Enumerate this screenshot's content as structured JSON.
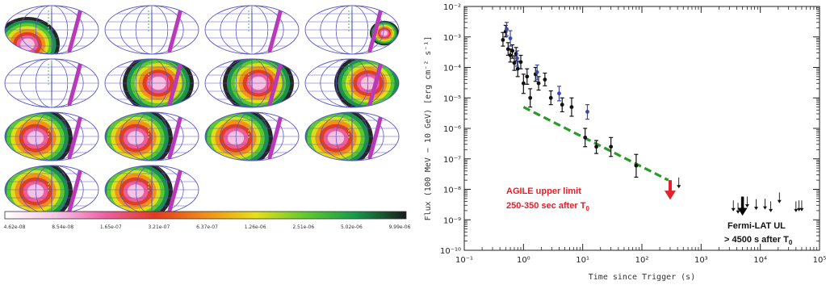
{
  "colorbar": {
    "labels": [
      "4.62e-08",
      "8.54e-08",
      "1.65e-07",
      "3.21e-07",
      "6.37e-07",
      "1.26e-06",
      "2.51e-06",
      "5.02e-06",
      "9.99e-06"
    ],
    "colors": [
      "#ffffff",
      "#f7c6e6",
      "#ef5fa4",
      "#e23a20",
      "#f38d18",
      "#e6e018",
      "#5ecb2e",
      "#169a4a",
      "#1a1a1a"
    ]
  },
  "sky_maps": {
    "count": 14,
    "columns": 4
  },
  "chart_data": {
    "type": "scatter",
    "xlabel": "Time since Trigger (s)",
    "ylabel": "Flux (100 MeV − 10 GeV) [erg cm⁻² s⁻¹]",
    "xscale": "log",
    "yscale": "log",
    "xlim": [
      0.1,
      100000
    ],
    "ylim": [
      1e-10,
      0.01
    ],
    "xticks": [
      "10⁻¹",
      "10⁰",
      "10¹",
      "10²",
      "10³",
      "10⁴",
      "10⁵"
    ],
    "yticks": [
      "10⁻¹⁰",
      "10⁻⁹",
      "10⁻⁸",
      "10⁻⁷",
      "10⁻⁶",
      "10⁻⁵",
      "10⁻⁴",
      "10⁻³",
      "10⁻²"
    ],
    "series": [
      {
        "color": "#111111",
        "points": [
          [
            0.45,
            0.0008,
            0.0005,
            0.0014
          ],
          [
            0.5,
            0.0015,
            0.001,
            0.0024
          ],
          [
            0.55,
            0.0004,
            0.00025,
            0.00065
          ],
          [
            0.6,
            0.00025,
            0.00015,
            0.0004
          ],
          [
            0.65,
            0.00035,
            0.0002,
            0.00055
          ],
          [
            0.7,
            0.00014,
            8e-05,
            0.00024
          ],
          [
            0.75,
            0.00028,
            0.00016,
            0.00045
          ],
          [
            0.8,
            9e-05,
            5e-05,
            0.00016
          ],
          [
            0.9,
            0.00015,
            9e-05,
            0.00025
          ],
          [
            1.0,
            3e-05,
            1.4e-05,
            6e-05
          ],
          [
            1.15,
            5e-05,
            2.8e-05,
            9e-05
          ],
          [
            1.3,
            1e-05,
            5e-06,
            2e-05
          ],
          [
            1.6,
            6e-05,
            3.5e-05,
            0.0001
          ],
          [
            1.8,
            3e-05,
            1.8e-05,
            5e-05
          ],
          [
            2.3,
            4e-05,
            2.5e-05,
            6.5e-05
          ],
          [
            2.9,
            1e-05,
            6e-06,
            1.7e-05
          ],
          [
            4.5,
            6e-06,
            3.5e-06,
            1e-05
          ],
          [
            6.5,
            5e-06,
            2.5e-06,
            1e-05
          ],
          [
            11,
            5e-07,
            2.5e-07,
            1e-06
          ],
          [
            17,
            2.5e-07,
            1.5e-07,
            4e-07
          ],
          [
            30,
            2.5e-07,
            1.2e-07,
            5e-07
          ],
          [
            80,
            6e-08,
            2.5e-08,
            1.4e-07
          ]
        ]
      },
      {
        "color": "#3b48a8",
        "points": [
          [
            0.52,
            0.0018,
            0.0011,
            0.003
          ],
          [
            0.6,
            0.0009,
            0.0005,
            0.0016
          ],
          [
            0.78,
            0.0002,
            0.00011,
            0.00035
          ],
          [
            1.7,
            7e-05,
            4e-05,
            0.00012
          ],
          [
            4,
            1.4e-05,
            8e-06,
            2.4e-05
          ],
          [
            12,
            3.5e-06,
            2e-06,
            6e-06
          ]
        ]
      }
    ],
    "fit_line": {
      "color": "#2a9a2a",
      "from": [
        1.0,
        5e-06
      ],
      "to": [
        280,
        2e-08
      ]
    },
    "agile_ul": {
      "x": 300,
      "y": 2e-08,
      "color": "#e4202a"
    },
    "small_ul": [
      [
        420,
        1.7e-08
      ]
    ],
    "fermi_ul": [
      [
        3500,
        3e-09
      ],
      [
        4200,
        2.5e-09
      ],
      [
        6000,
        4e-09
      ],
      [
        8500,
        3.3e-09
      ],
      [
        12000,
        3.4e-09
      ],
      [
        15000,
        2.8e-09
      ],
      [
        21000,
        5.5e-09
      ],
      [
        40000,
        2.8e-09
      ],
      [
        45000,
        3e-09
      ],
      [
        50000,
        3e-09
      ]
    ],
    "fermi_ul_big": {
      "x": 5000,
      "y": 4e-09
    },
    "annotations": {
      "agile_line1": "AGILE upper limit",
      "agile_line2": "250-350 sec after T",
      "agile_sub": "0",
      "fermi_line1": "Fermi-LAT UL",
      "fermi_line2": "> 4500 s after T",
      "fermi_sub": "0"
    }
  }
}
